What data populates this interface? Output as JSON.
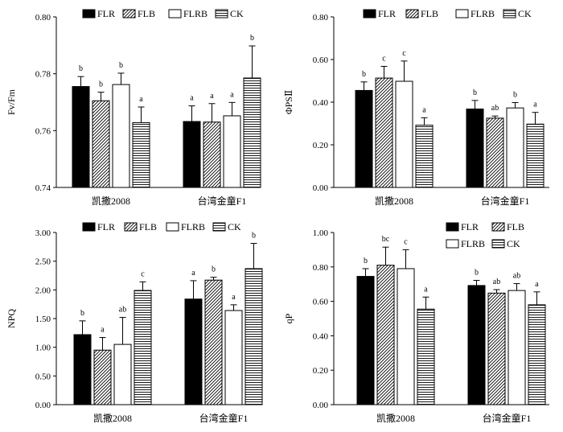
{
  "legend_labels": [
    "FLR",
    "FLB",
    "FLRB",
    "CK"
  ],
  "categories": [
    "凯撒2008",
    "台湾金童F1"
  ],
  "chart_data": [
    {
      "type": "bar",
      "ylabel": "Fv/Fm",
      "ylim": [
        0.74,
        0.8
      ],
      "yticks": [
        "0.74",
        "0.76",
        "0.78",
        "0.80"
      ],
      "legend_position": "top",
      "series": [
        {
          "name": "FLR",
          "values": [
            0.7755,
            0.7632
          ],
          "errors": [
            0.0035,
            0.0055
          ],
          "letters": [
            "b",
            "a"
          ]
        },
        {
          "name": "FLB",
          "values": [
            0.7705,
            0.763
          ],
          "errors": [
            0.003,
            0.0065
          ],
          "letters": [
            "b",
            "a"
          ]
        },
        {
          "name": "FLRB",
          "values": [
            0.7762,
            0.7652
          ],
          "errors": [
            0.004,
            0.0047
          ],
          "letters": [
            "b",
            "a"
          ]
        },
        {
          "name": "CK",
          "values": [
            0.7628,
            0.7785
          ],
          "errors": [
            0.0055,
            0.0113
          ],
          "letters": [
            "a",
            "b"
          ]
        }
      ]
    },
    {
      "type": "bar",
      "ylabel": "ΦPSⅡ",
      "ylim": [
        0.0,
        0.8
      ],
      "yticks": [
        "0.00",
        "0.20",
        "0.40",
        "0.60",
        "0.80"
      ],
      "legend_position": "top",
      "series": [
        {
          "name": "FLR",
          "values": [
            0.455,
            0.368
          ],
          "errors": [
            0.04,
            0.04
          ],
          "letters": [
            "b",
            "b"
          ]
        },
        {
          "name": "FLB",
          "values": [
            0.513,
            0.325
          ],
          "errors": [
            0.055,
            0.01
          ],
          "letters": [
            "c",
            "ab"
          ]
        },
        {
          "name": "FLRB",
          "values": [
            0.498,
            0.373
          ],
          "errors": [
            0.095,
            0.025
          ],
          "letters": [
            "c",
            "b"
          ]
        },
        {
          "name": "CK",
          "values": [
            0.292,
            0.297
          ],
          "errors": [
            0.035,
            0.055
          ],
          "letters": [
            "a",
            "a"
          ]
        }
      ]
    },
    {
      "type": "bar",
      "ylabel": "NPQ",
      "ylim": [
        0.0,
        3.0
      ],
      "yticks": [
        "0.00",
        "0.50",
        "1.00",
        "1.50",
        "2.00",
        "2.50",
        "3.00"
      ],
      "legend_position": "top",
      "series": [
        {
          "name": "FLR",
          "values": [
            1.22,
            1.84
          ],
          "errors": [
            0.24,
            0.32
          ],
          "letters": [
            "b",
            "a"
          ]
        },
        {
          "name": "FLB",
          "values": [
            0.95,
            2.17
          ],
          "errors": [
            0.22,
            0.05
          ],
          "letters": [
            "a",
            "b"
          ]
        },
        {
          "name": "FLRB",
          "values": [
            1.05,
            1.64
          ],
          "errors": [
            0.47,
            0.1
          ],
          "letters": [
            "ab",
            "a"
          ]
        },
        {
          "name": "CK",
          "values": [
            1.99,
            2.37
          ],
          "errors": [
            0.15,
            0.44
          ],
          "letters": [
            "c",
            "b"
          ]
        }
      ]
    },
    {
      "type": "bar",
      "ylabel": "qP",
      "ylim": [
        0.0,
        1.0
      ],
      "yticks": [
        "0.00",
        "0.20",
        "0.40",
        "0.60",
        "0.80",
        "1.00"
      ],
      "legend_position": "top-right",
      "series": [
        {
          "name": "FLR",
          "values": [
            0.745,
            0.692
          ],
          "errors": [
            0.045,
            0.03
          ],
          "letters": [
            "b",
            "b"
          ]
        },
        {
          "name": "FLB",
          "values": [
            0.81,
            0.648
          ],
          "errors": [
            0.105,
            0.02
          ],
          "letters": [
            "bc",
            "ab"
          ]
        },
        {
          "name": "FLRB",
          "values": [
            0.79,
            0.663
          ],
          "errors": [
            0.11,
            0.04
          ],
          "letters": [
            "c",
            "ab"
          ]
        },
        {
          "name": "CK",
          "values": [
            0.555,
            0.58
          ],
          "errors": [
            0.07,
            0.075
          ],
          "letters": [
            "a",
            "a"
          ]
        }
      ]
    }
  ]
}
